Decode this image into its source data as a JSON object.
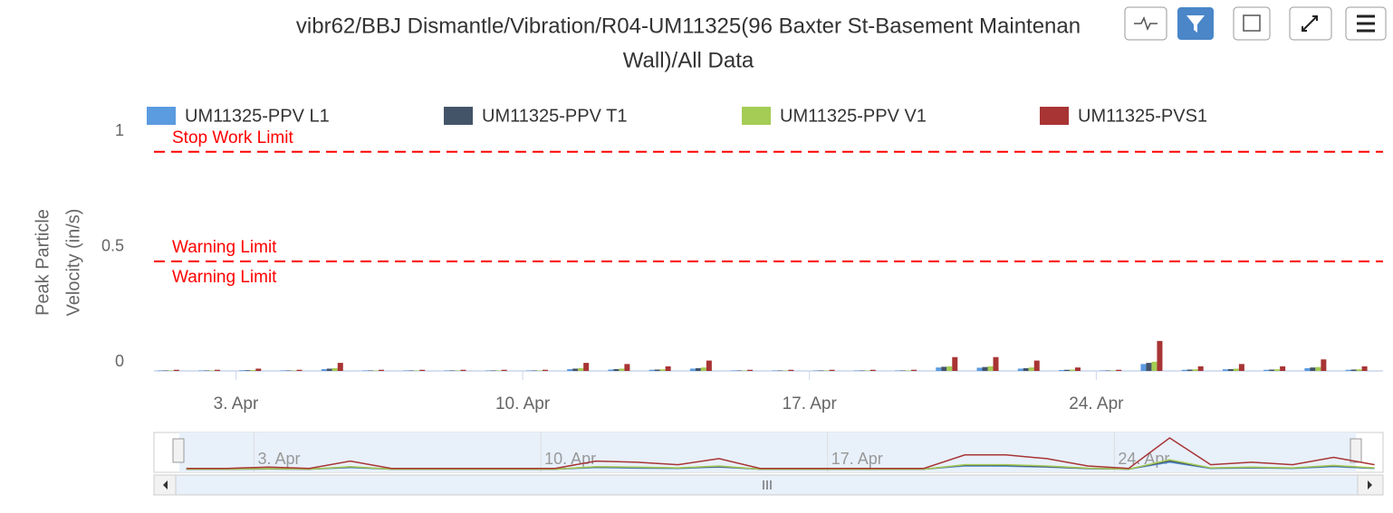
{
  "chart_data": {
    "type": "bar",
    "title": [
      "vibr62/BBJ Dismantle/Vibration/R04-UM11325(96 Baxter St-Basement Maintenan",
      "Wall)/All Data"
    ],
    "y_axis_title": [
      "Peak Particle",
      "Velocity (in/s)"
    ],
    "x": [
      1.35,
      2.35,
      3.35,
      4.35,
      5.35,
      6.35,
      7.35,
      8.35,
      9.35,
      10.35,
      11.35,
      12.35,
      13.35,
      14.35,
      15.35,
      16.35,
      17.35,
      18.35,
      19.35,
      20.35,
      21.35,
      22.35,
      23.35,
      24.35,
      25.35,
      26.35,
      27.35,
      28.35,
      29.35,
      30.35
    ],
    "series": [
      {
        "name": "UM11325-PPV L1",
        "color": "#5b9be0",
        "values": [
          0.002,
          0.002,
          0.003,
          0.002,
          0.008,
          0.002,
          0.002,
          0.002,
          0.002,
          0.002,
          0.008,
          0.006,
          0.005,
          0.01,
          0.002,
          0.002,
          0.002,
          0.002,
          0.002,
          0.015,
          0.014,
          0.01,
          0.004,
          0.002,
          0.03,
          0.005,
          0.007,
          0.005,
          0.012,
          0.005
        ]
      },
      {
        "name": "UM11325-PPV T1",
        "color": "#435469",
        "values": [
          0.002,
          0.002,
          0.003,
          0.002,
          0.01,
          0.002,
          0.002,
          0.002,
          0.002,
          0.002,
          0.01,
          0.008,
          0.006,
          0.012,
          0.002,
          0.002,
          0.002,
          0.002,
          0.002,
          0.018,
          0.017,
          0.012,
          0.005,
          0.002,
          0.035,
          0.006,
          0.008,
          0.006,
          0.015,
          0.006
        ]
      },
      {
        "name": "UM11325-PPV V1",
        "color": "#a5cc55",
        "values": [
          0.002,
          0.002,
          0.004,
          0.002,
          0.012,
          0.002,
          0.002,
          0.002,
          0.002,
          0.002,
          0.012,
          0.01,
          0.007,
          0.015,
          0.002,
          0.002,
          0.002,
          0.002,
          0.002,
          0.02,
          0.02,
          0.015,
          0.006,
          0.002,
          0.04,
          0.007,
          0.01,
          0.007,
          0.017,
          0.007
        ]
      },
      {
        "name": "UM11325-PVS1",
        "color": "#a83434",
        "values": [
          0.005,
          0.005,
          0.01,
          0.005,
          0.035,
          0.005,
          0.005,
          0.005,
          0.005,
          0.005,
          0.035,
          0.03,
          0.02,
          0.045,
          0.005,
          0.005,
          0.005,
          0.005,
          0.005,
          0.06,
          0.06,
          0.045,
          0.015,
          0.005,
          0.13,
          0.02,
          0.03,
          0.02,
          0.05,
          0.02
        ]
      }
    ],
    "plot_lines": [
      {
        "value": 0.95,
        "label": "Stop Work Limit"
      },
      {
        "value": 0.475,
        "label": "Warning Limit"
      },
      {
        "value": 0.475,
        "label": "Warning Limit"
      }
    ],
    "plot_line_color": "#ff0000",
    "xlim": [
      1,
      31
    ],
    "xticks": [
      {
        "value": 3,
        "label": "3. Apr"
      },
      {
        "value": 10,
        "label": "10. Apr"
      },
      {
        "value": 17,
        "label": "17. Apr"
      },
      {
        "value": 24,
        "label": "24. Apr"
      }
    ],
    "ylim": [
      0,
      1
    ],
    "yticks": [
      0,
      0.5,
      1
    ]
  }
}
